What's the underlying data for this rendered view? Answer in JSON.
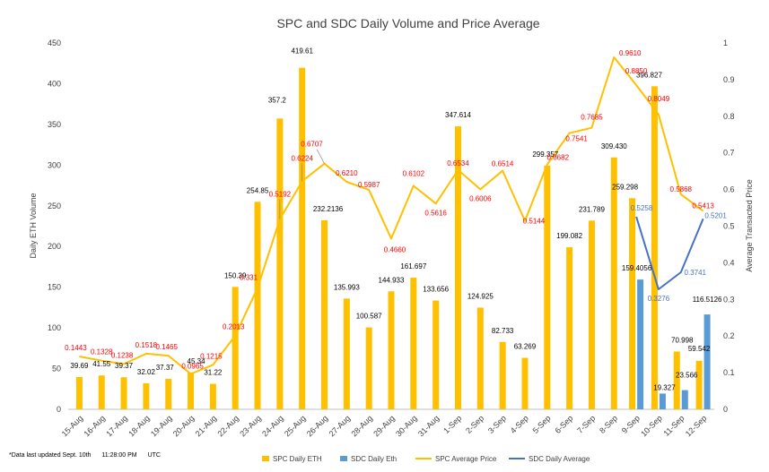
{
  "chart_data": {
    "type": "bar",
    "title": "SPC and SDC Daily Volume and Price Average",
    "ylabel": "Daily ETH Volume",
    "y2label": "Average Transacted Price",
    "ylim": [
      0,
      450
    ],
    "y2lim": [
      0,
      1
    ],
    "yticks": [
      0,
      50,
      100,
      150,
      200,
      250,
      300,
      350,
      400,
      450
    ],
    "y2ticks": [
      "0",
      "0.1",
      "0.2",
      "0.3",
      "0.4",
      "0.5",
      "0.6",
      "0.7",
      "0.8",
      "0.9",
      "1"
    ],
    "grid": false,
    "legend_position": "bottom",
    "categories": [
      "15-Aug",
      "16-Aug",
      "17-Aug",
      "18-Aug",
      "19-Aug",
      "20-Aug",
      "21-Aug",
      "22-Aug",
      "23-Aug",
      "24-Aug",
      "25-Aug",
      "26-Aug",
      "27-Aug",
      "28-Aug",
      "29-Aug",
      "30-Aug",
      "31-Aug",
      "1-Sep",
      "2-Sep",
      "3-Sep",
      "4-Sep",
      "5-Sep",
      "6-Sep",
      "7-Sep",
      "8-Sep",
      "9-Sep",
      "10-Sep",
      "11-Sep",
      "12-Sep"
    ],
    "series": [
      {
        "name": "SPC Daily ETH",
        "kind": "bar",
        "axis": "left",
        "color": "#FFC000",
        "values": [
          39.69,
          41.55,
          39.37,
          32.02,
          37.37,
          45.34,
          31.22,
          150.39,
          254.85,
          357.2,
          419.61,
          232.2136,
          135.993,
          100.587,
          144.933,
          161.697,
          133.656,
          347.614,
          124.925,
          82.733,
          63.269,
          299.357,
          199.082,
          231.789,
          309.43,
          259.298,
          396.827,
          70.998,
          59.542
        ],
        "labels": [
          "39.69",
          "41.55",
          "39.37",
          "32.02",
          "37.37",
          "45.34",
          "31.22",
          "150.39",
          "254.85",
          "357.2",
          "419.61",
          "232.2136",
          "135.993",
          "100.587",
          "144.933",
          "161.697",
          "133.656",
          "347.614",
          "124.925",
          "82.733",
          "63.269",
          "299.357",
          "199.082",
          "231.789",
          "309.430",
          "259.298",
          "396.827",
          "70.998",
          "59.542"
        ]
      },
      {
        "name": "SDC Daily Eth",
        "kind": "bar",
        "axis": "left",
        "color": "#5B9BD5",
        "values": [
          null,
          null,
          null,
          null,
          null,
          null,
          null,
          null,
          null,
          null,
          null,
          null,
          null,
          null,
          null,
          null,
          null,
          null,
          null,
          null,
          null,
          null,
          null,
          null,
          null,
          159.4056,
          19.327,
          23.566,
          116.5126
        ],
        "labels": [
          null,
          null,
          null,
          null,
          null,
          null,
          null,
          null,
          null,
          null,
          null,
          null,
          null,
          null,
          null,
          null,
          null,
          null,
          null,
          null,
          null,
          null,
          null,
          null,
          null,
          "159.4056",
          "19.327",
          "23.566",
          "116.5126"
        ]
      },
      {
        "name": "SPC Average Price",
        "kind": "line",
        "axis": "right",
        "color": "#FFC000",
        "label_color": "#FF0000",
        "values": [
          0.1443,
          0.1328,
          0.1238,
          0.1518,
          0.1465,
          0.0965,
          0.1215,
          0.2013,
          0.331,
          0.5192,
          0.6224,
          0.6707,
          0.621,
          0.5987,
          0.466,
          0.6102,
          0.5616,
          0.6534,
          0.6006,
          0.6514,
          0.5144,
          0.6682,
          0.7541,
          0.7685,
          0.961,
          0.885,
          0.8049,
          0.5868,
          0.5413
        ],
        "labels": [
          "0.1443",
          "0.1328",
          "0.1238",
          "0.1518",
          "0.1465",
          "0.0965",
          "0.1215",
          "0.2013",
          "0.331",
          "0.5192",
          "0.6224",
          "0.6707",
          "0.6210",
          "0.5987",
          "0.4660",
          "0.6102",
          "0.5616",
          "0.6534",
          "0.6006",
          "0.6514",
          "0.5144",
          "0.6682",
          "0.7541",
          "0.7685",
          "0.9610",
          "0.8850",
          "0.8049",
          "0.5868",
          "0.5413"
        ]
      },
      {
        "name": "SDC Daily Average",
        "kind": "line",
        "axis": "right",
        "color": "#4472C4",
        "label_color": "#4472C4",
        "values": [
          null,
          null,
          null,
          null,
          null,
          null,
          null,
          null,
          null,
          null,
          null,
          null,
          null,
          null,
          null,
          null,
          null,
          null,
          null,
          null,
          null,
          null,
          null,
          null,
          null,
          0.5258,
          0.3276,
          0.3741,
          0.5201
        ],
        "labels": [
          null,
          null,
          null,
          null,
          null,
          null,
          null,
          null,
          null,
          null,
          null,
          null,
          null,
          null,
          null,
          null,
          null,
          null,
          null,
          null,
          null,
          null,
          null,
          null,
          null,
          "0.5258",
          "0.3276",
          "0.3741",
          "0.5201"
        ]
      }
    ]
  },
  "footnote": {
    "note": "*Data last updated Sept. 10th",
    "time": "11:28:00 PM",
    "zone": "UTC"
  }
}
